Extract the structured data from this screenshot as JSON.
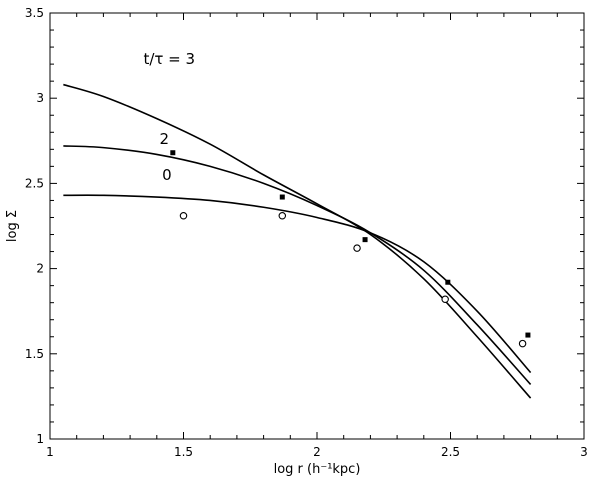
{
  "chart_data": {
    "type": "line",
    "xlabel": "log r (h⁻¹kpc)",
    "ylabel": "log Σ",
    "xlim": [
      1,
      3
    ],
    "ylim": [
      1,
      3.5
    ],
    "x_ticks": [
      "1",
      "1.5",
      "2",
      "2.5",
      "3"
    ],
    "y_ticks": [
      "1",
      "1.5",
      "2",
      "2.5",
      "3",
      "3.5"
    ],
    "grid": false,
    "series": [
      {
        "name": "t/τ = 3",
        "x": [
          1.05,
          1.2,
          1.4,
          1.6,
          1.8,
          2.0,
          2.2,
          2.4,
          2.6,
          2.8
        ],
        "y": [
          3.08,
          3.01,
          2.88,
          2.73,
          2.55,
          2.38,
          2.2,
          1.94,
          1.6,
          1.24
        ]
      },
      {
        "name": "2",
        "x": [
          1.05,
          1.2,
          1.4,
          1.6,
          1.8,
          2.0,
          2.2,
          2.4,
          2.6,
          2.8
        ],
        "y": [
          2.72,
          2.71,
          2.67,
          2.6,
          2.5,
          2.37,
          2.21,
          1.99,
          1.67,
          1.32
        ]
      },
      {
        "name": "0",
        "x": [
          1.05,
          1.2,
          1.4,
          1.6,
          1.8,
          2.0,
          2.2,
          2.4,
          2.6,
          2.8
        ],
        "y": [
          2.43,
          2.43,
          2.42,
          2.4,
          2.36,
          2.3,
          2.21,
          2.04,
          1.75,
          1.39
        ]
      }
    ],
    "points": [
      {
        "marker": "filled-square",
        "x": [
          1.46,
          1.87,
          2.18,
          2.49,
          2.79
        ],
        "y": [
          2.68,
          2.42,
          2.17,
          1.92,
          1.61
        ]
      },
      {
        "marker": "open-circle",
        "x": [
          1.5,
          1.87,
          2.15,
          2.48,
          2.77
        ],
        "y": [
          2.31,
          2.31,
          2.12,
          1.82,
          1.56
        ]
      }
    ],
    "annotations": [
      {
        "text": "t/τ = 3",
        "series": "t/τ = 3",
        "x": 1.35,
        "y": 3.2
      },
      {
        "text": "2",
        "series": "2",
        "x": 1.41,
        "y": 2.73
      },
      {
        "text": "0",
        "series": "0",
        "x": 1.42,
        "y": 2.52
      }
    ]
  }
}
